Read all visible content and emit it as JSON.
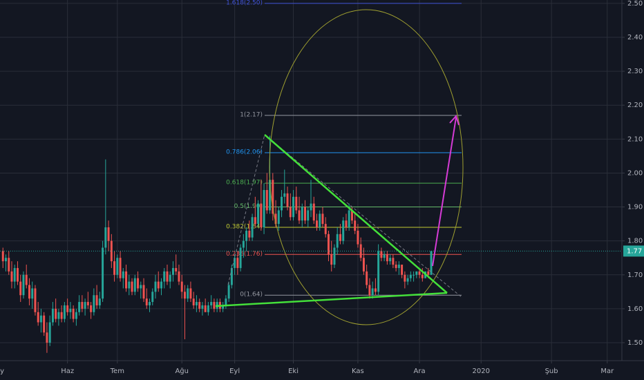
{
  "chart_data": {
    "type": "candlestick",
    "up_color": "#26a69a",
    "down_color": "#ef5350",
    "xlim": [
      -1,
      211
    ],
    "ylim": [
      1.447,
      2.51
    ],
    "grid": true,
    "xticks": [
      {
        "value": -2,
        "label": "May"
      },
      {
        "value": 22,
        "label": "Haz"
      },
      {
        "value": 39,
        "label": "Tem"
      },
      {
        "value": 61,
        "label": "Ağu"
      },
      {
        "value": 79,
        "label": "Eyl"
      },
      {
        "value": 99,
        "label": "Eki"
      },
      {
        "value": 121,
        "label": "Kas"
      },
      {
        "value": 142,
        "label": "Ara"
      },
      {
        "value": 163,
        "label": "2020"
      },
      {
        "value": 187,
        "label": "Şub"
      },
      {
        "value": 206,
        "label": "Mar"
      }
    ],
    "yticks": [
      {
        "value": 1.5,
        "label": "1.50"
      },
      {
        "value": 1.6,
        "label": "1.60"
      },
      {
        "value": 1.7,
        "label": "1.70"
      },
      {
        "value": 1.8,
        "label": "1.80"
      },
      {
        "value": 1.9,
        "label": "1.90"
      },
      {
        "value": 2.0,
        "label": "2.00"
      },
      {
        "value": 2.1,
        "label": "2.10"
      },
      {
        "value": 2.2,
        "label": "2.20"
      },
      {
        "value": 2.3,
        "label": "2.30"
      },
      {
        "value": 2.4,
        "label": "2.40"
      },
      {
        "value": 2.5,
        "label": "2.50"
      }
    ],
    "last_price": {
      "value": 1.77,
      "label": "1.77"
    },
    "fib_levels": [
      {
        "label": "1.618(2.50)",
        "value": 2.5,
        "color": "#3f51d5"
      },
      {
        "label": "1(2.17)",
        "value": 2.17,
        "color": "#9598a1"
      },
      {
        "label": "0.786(2.06)",
        "value": 2.06,
        "color": "#2196f3"
      },
      {
        "label": "0.618(1.97)",
        "value": 1.97,
        "color": "#4caf50"
      },
      {
        "label": "0.5(1.90)",
        "value": 1.9,
        "color": "#66bb6a"
      },
      {
        "label": "0.382(1.84)",
        "value": 1.84,
        "color": "#c0ca33"
      },
      {
        "label": "0.236(1.76)",
        "value": 1.76,
        "color": "#ef5350"
      },
      {
        "label": "0(1.64)",
        "value": 1.64,
        "color": "#9598a1"
      }
    ],
    "values": [
      [
        1.77,
        1.78,
        1.72,
        1.74
      ],
      [
        1.74,
        1.76,
        1.71,
        1.75
      ],
      [
        1.75,
        1.77,
        1.7,
        1.71
      ],
      [
        1.71,
        1.74,
        1.66,
        1.68
      ],
      [
        1.68,
        1.73,
        1.66,
        1.72
      ],
      [
        1.72,
        1.74,
        1.67,
        1.68
      ],
      [
        1.68,
        1.7,
        1.62,
        1.64
      ],
      [
        1.64,
        1.71,
        1.63,
        1.7
      ],
      [
        1.7,
        1.73,
        1.66,
        1.67
      ],
      [
        1.67,
        1.69,
        1.61,
        1.63
      ],
      [
        1.63,
        1.68,
        1.6,
        1.66
      ],
      [
        1.66,
        1.67,
        1.58,
        1.59
      ],
      [
        1.59,
        1.62,
        1.55,
        1.56
      ],
      [
        1.56,
        1.6,
        1.53,
        1.58
      ],
      [
        1.58,
        1.59,
        1.52,
        1.53
      ],
      [
        1.53,
        1.56,
        1.47,
        1.5
      ],
      [
        1.5,
        1.58,
        1.49,
        1.56
      ],
      [
        1.56,
        1.62,
        1.55,
        1.6
      ],
      [
        1.6,
        1.63,
        1.56,
        1.57
      ],
      [
        1.57,
        1.6,
        1.55,
        1.59
      ],
      [
        1.59,
        1.61,
        1.56,
        1.57
      ],
      [
        1.57,
        1.62,
        1.56,
        1.61
      ],
      [
        1.61,
        1.63,
        1.58,
        1.59
      ],
      [
        1.59,
        1.62,
        1.57,
        1.6
      ],
      [
        1.6,
        1.61,
        1.56,
        1.57
      ],
      [
        1.57,
        1.6,
        1.55,
        1.59
      ],
      [
        1.59,
        1.64,
        1.58,
        1.62
      ],
      [
        1.62,
        1.64,
        1.59,
        1.6
      ],
      [
        1.6,
        1.63,
        1.58,
        1.62
      ],
      [
        1.62,
        1.65,
        1.6,
        1.61
      ],
      [
        1.61,
        1.62,
        1.57,
        1.59
      ],
      [
        1.59,
        1.66,
        1.58,
        1.64
      ],
      [
        1.64,
        1.67,
        1.6,
        1.61
      ],
      [
        1.61,
        1.65,
        1.6,
        1.63
      ],
      [
        1.63,
        1.8,
        1.62,
        1.78
      ],
      [
        1.78,
        2.04,
        1.76,
        1.84
      ],
      [
        1.84,
        1.86,
        1.77,
        1.8
      ],
      [
        1.8,
        1.82,
        1.72,
        1.74
      ],
      [
        1.74,
        1.77,
        1.68,
        1.7
      ],
      [
        1.7,
        1.76,
        1.69,
        1.75
      ],
      [
        1.75,
        1.77,
        1.68,
        1.69
      ],
      [
        1.69,
        1.72,
        1.66,
        1.71
      ],
      [
        1.71,
        1.73,
        1.65,
        1.66
      ],
      [
        1.66,
        1.7,
        1.64,
        1.68
      ],
      [
        1.68,
        1.69,
        1.64,
        1.65
      ],
      [
        1.65,
        1.7,
        1.64,
        1.69
      ],
      [
        1.69,
        1.71,
        1.65,
        1.66
      ],
      [
        1.66,
        1.68,
        1.63,
        1.67
      ],
      [
        1.67,
        1.69,
        1.62,
        1.63
      ],
      [
        1.63,
        1.66,
        1.6,
        1.61
      ],
      [
        1.61,
        1.63,
        1.59,
        1.62
      ],
      [
        1.62,
        1.66,
        1.61,
        1.65
      ],
      [
        1.65,
        1.7,
        1.63,
        1.68
      ],
      [
        1.68,
        1.71,
        1.65,
        1.66
      ],
      [
        1.66,
        1.69,
        1.64,
        1.68
      ],
      [
        1.68,
        1.72,
        1.66,
        1.71
      ],
      [
        1.71,
        1.73,
        1.67,
        1.68
      ],
      [
        1.68,
        1.71,
        1.66,
        1.7
      ],
      [
        1.7,
        1.74,
        1.68,
        1.72
      ],
      [
        1.72,
        1.76,
        1.7,
        1.71
      ],
      [
        1.71,
        1.73,
        1.67,
        1.68
      ],
      [
        1.68,
        1.7,
        1.63,
        1.65
      ],
      [
        1.65,
        1.67,
        1.51,
        1.63
      ],
      [
        1.63,
        1.67,
        1.62,
        1.66
      ],
      [
        1.66,
        1.68,
        1.62,
        1.63
      ],
      [
        1.63,
        1.65,
        1.6,
        1.61
      ],
      [
        1.61,
        1.64,
        1.59,
        1.62
      ],
      [
        1.62,
        1.63,
        1.59,
        1.6
      ],
      [
        1.6,
        1.62,
        1.58,
        1.61
      ],
      [
        1.61,
        1.63,
        1.59,
        1.59
      ],
      [
        1.59,
        1.62,
        1.58,
        1.61
      ],
      [
        1.61,
        1.64,
        1.6,
        1.62
      ],
      [
        1.62,
        1.63,
        1.59,
        1.6
      ],
      [
        1.6,
        1.63,
        1.59,
        1.62
      ],
      [
        1.62,
        1.63,
        1.59,
        1.6
      ],
      [
        1.6,
        1.62,
        1.59,
        1.61
      ],
      [
        1.61,
        1.64,
        1.6,
        1.63
      ],
      [
        1.63,
        1.68,
        1.62,
        1.67
      ],
      [
        1.67,
        1.73,
        1.66,
        1.72
      ],
      [
        1.72,
        1.76,
        1.7,
        1.75
      ],
      [
        1.75,
        1.77,
        1.7,
        1.72
      ],
      [
        1.72,
        1.79,
        1.71,
        1.78
      ],
      [
        1.78,
        1.82,
        1.75,
        1.8
      ],
      [
        1.8,
        1.84,
        1.77,
        1.83
      ],
      [
        1.83,
        1.86,
        1.8,
        1.81
      ],
      [
        1.81,
        1.88,
        1.8,
        1.87
      ],
      [
        1.87,
        1.93,
        1.84,
        1.85
      ],
      [
        1.85,
        1.92,
        1.84,
        1.91
      ],
      [
        1.91,
        1.98,
        1.83,
        1.84
      ],
      [
        1.84,
        1.97,
        1.82,
        1.95
      ],
      [
        1.95,
        2.0,
        1.88,
        1.89
      ],
      [
        1.89,
        2.11,
        1.88,
        1.98
      ],
      [
        1.98,
        2.0,
        1.86,
        1.88
      ],
      [
        1.88,
        1.92,
        1.84,
        1.85
      ],
      [
        1.85,
        1.9,
        1.83,
        1.89
      ],
      [
        1.89,
        1.95,
        1.87,
        1.93
      ],
      [
        1.93,
        2.01,
        1.91,
        1.94
      ],
      [
        1.94,
        1.96,
        1.89,
        1.9
      ],
      [
        1.9,
        1.94,
        1.86,
        1.87
      ],
      [
        1.87,
        1.95,
        1.86,
        1.93
      ],
      [
        1.93,
        1.96,
        1.88,
        1.89
      ],
      [
        1.89,
        1.93,
        1.85,
        1.86
      ],
      [
        1.86,
        1.91,
        1.84,
        1.9
      ],
      [
        1.9,
        1.92,
        1.85,
        1.86
      ],
      [
        1.86,
        1.9,
        1.84,
        1.89
      ],
      [
        1.89,
        1.98,
        1.87,
        1.91
      ],
      [
        1.91,
        1.93,
        1.85,
        1.86
      ],
      [
        1.86,
        1.88,
        1.83,
        1.84
      ],
      [
        1.84,
        1.89,
        1.83,
        1.88
      ],
      [
        1.88,
        1.9,
        1.84,
        1.85
      ],
      [
        1.85,
        1.87,
        1.81,
        1.82
      ],
      [
        1.82,
        1.83,
        1.74,
        1.76
      ],
      [
        1.76,
        1.8,
        1.71,
        1.73
      ],
      [
        1.73,
        1.79,
        1.72,
        1.78
      ],
      [
        1.78,
        1.84,
        1.76,
        1.82
      ],
      [
        1.82,
        1.85,
        1.79,
        1.8
      ],
      [
        1.8,
        1.87,
        1.79,
        1.86
      ],
      [
        1.86,
        1.88,
        1.83,
        1.84
      ],
      [
        1.84,
        1.91,
        1.83,
        1.89
      ],
      [
        1.89,
        1.9,
        1.85,
        1.86
      ],
      [
        1.86,
        1.88,
        1.82,
        1.83
      ],
      [
        1.83,
        1.85,
        1.78,
        1.79
      ],
      [
        1.79,
        1.81,
        1.74,
        1.75
      ],
      [
        1.75,
        1.78,
        1.7,
        1.71
      ],
      [
        1.71,
        1.73,
        1.66,
        1.67
      ],
      [
        1.67,
        1.69,
        1.63,
        1.64
      ],
      [
        1.64,
        1.68,
        1.63,
        1.66
      ],
      [
        1.66,
        1.69,
        1.64,
        1.65
      ],
      [
        1.65,
        1.79,
        1.64,
        1.77
      ],
      [
        1.77,
        1.78,
        1.74,
        1.75
      ],
      [
        1.75,
        1.77,
        1.74,
        1.76
      ],
      [
        1.76,
        1.77,
        1.73,
        1.74
      ],
      [
        1.74,
        1.76,
        1.73,
        1.75
      ],
      [
        1.75,
        1.76,
        1.72,
        1.73
      ],
      [
        1.73,
        1.74,
        1.71,
        1.72
      ],
      [
        1.72,
        1.74,
        1.7,
        1.73
      ],
      [
        1.73,
        1.73,
        1.69,
        1.7
      ],
      [
        1.7,
        1.71,
        1.66,
        1.68
      ],
      [
        1.68,
        1.7,
        1.67,
        1.69
      ],
      [
        1.69,
        1.71,
        1.68,
        1.7
      ],
      [
        1.7,
        1.71,
        1.68,
        1.7
      ],
      [
        1.7,
        1.71,
        1.69,
        1.71
      ],
      [
        1.71,
        1.72,
        1.69,
        1.7
      ],
      [
        1.7,
        1.72,
        1.68,
        1.69
      ],
      [
        1.69,
        1.71,
        1.69,
        1.71
      ],
      [
        1.71,
        1.72,
        1.69,
        1.7
      ],
      [
        1.7,
        1.77,
        1.7,
        1.77
      ]
    ]
  }
}
